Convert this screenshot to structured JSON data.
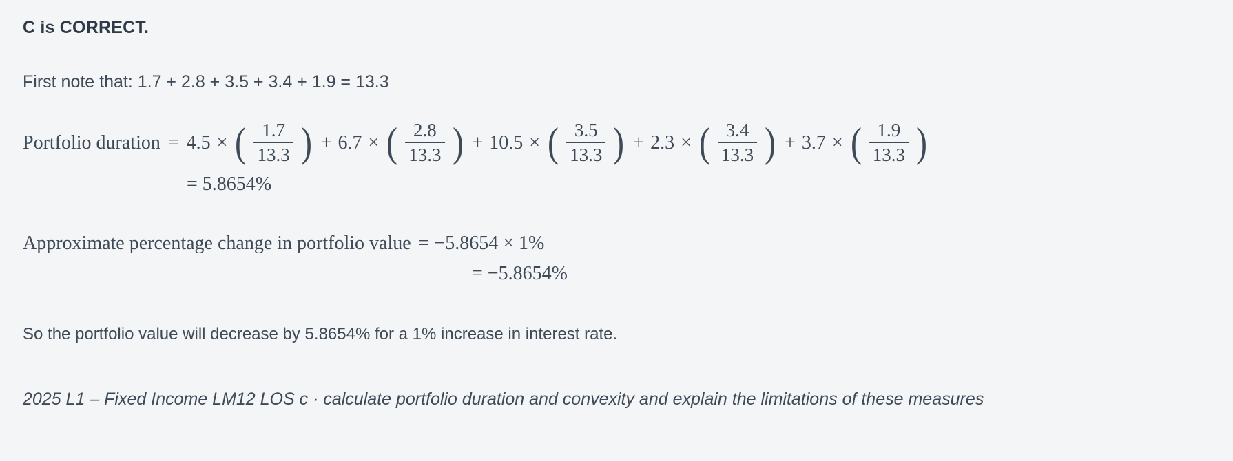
{
  "page": {
    "background_color": "#f4f5f7",
    "text_color": "#3e4a57"
  },
  "answer": {
    "verdict": "C is CORRECT.",
    "note": "First note that: 1.7 + 2.8 + 3.5 + 3.4 + 1.9 = 13.3"
  },
  "symbols": {
    "open_paren": "(",
    "close_paren": ")"
  },
  "duration_formula": {
    "lhs": "Portfolio duration",
    "equals": "=",
    "terms": [
      {
        "op": "",
        "coef": "4.5",
        "times": "×",
        "num": "1.7",
        "den": "13.3"
      },
      {
        "op": "+",
        "coef": "6.7",
        "times": "×",
        "num": "2.8",
        "den": "13.3"
      },
      {
        "op": "+",
        "coef": "10.5",
        "times": "×",
        "num": "3.5",
        "den": "13.3"
      },
      {
        "op": "+",
        "coef": "2.3",
        "times": "×",
        "num": "3.4",
        "den": "13.3"
      },
      {
        "op": "+",
        "coef": "3.7",
        "times": "×",
        "num": "1.9",
        "den": "13.3"
      }
    ],
    "result": "= 5.8654%"
  },
  "change_formula": {
    "lhs": "Approximate percentage change in portfolio value",
    "rhs": "= −5.8654 × 1%",
    "result": "= −5.8654%"
  },
  "conclusion": "So the portfolio value will decrease by 5.8654% for a 1% increase in interest rate.",
  "footer": "2025 L1 – Fixed Income LM12 LOS c · calculate portfolio duration and convexity and explain the limitations of these measures"
}
